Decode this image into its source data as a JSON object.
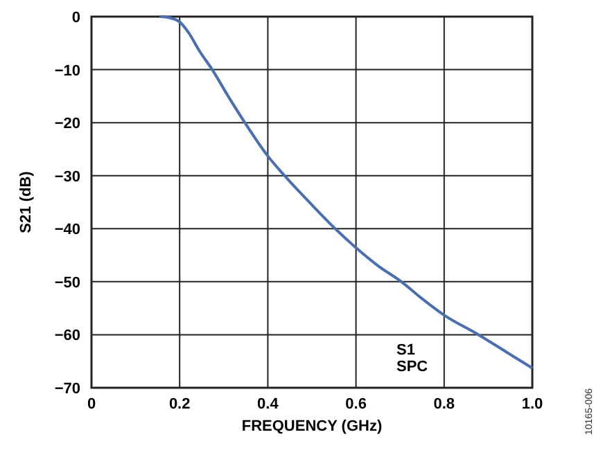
{
  "chart_data": {
    "type": "line",
    "xlabel": "FREQUENCY (GHz)",
    "ylabel": "S21 (dB)",
    "x": [
      0.155,
      0.17,
      0.185,
      0.2,
      0.22,
      0.245,
      0.274,
      0.31,
      0.348,
      0.4,
      0.438,
      0.5,
      0.553,
      0.6,
      0.65,
      0.703,
      0.75,
      0.8,
      0.878,
      0.94,
      1.0
    ],
    "series": [
      {
        "color": "#4a6fb0",
        "values": [
          0,
          -0.1,
          -0.4,
          -1,
          -3,
          -6.5,
          -10,
          -15,
          -20,
          -26.3,
          -30,
          -35.5,
          -40,
          -43.6,
          -47,
          -50,
          -53.2,
          -56.3,
          -60,
          -63.2,
          -66.3
        ]
      }
    ],
    "xlim": [
      0,
      1
    ],
    "ylim": [
      -70,
      0
    ],
    "xticks": [
      0,
      0.2,
      0.4,
      0.6,
      0.8,
      {
        "value": 1,
        "label": "1.0"
      }
    ],
    "yticks": [
      {
        "value": 0,
        "label": "0"
      },
      {
        "value": -10,
        "label": "−10"
      },
      {
        "value": -20,
        "label": "−20"
      },
      {
        "value": -30,
        "label": "−30"
      },
      {
        "value": -40,
        "label": "−40"
      },
      {
        "value": -50,
        "label": "−50"
      },
      {
        "value": -60,
        "label": "−60"
      },
      {
        "value": -70,
        "label": "−70"
      }
    ],
    "grid": true,
    "marker": "none",
    "line_style": "solid",
    "annotations": [
      "S1\nSPC",
      "10165-006"
    ]
  }
}
